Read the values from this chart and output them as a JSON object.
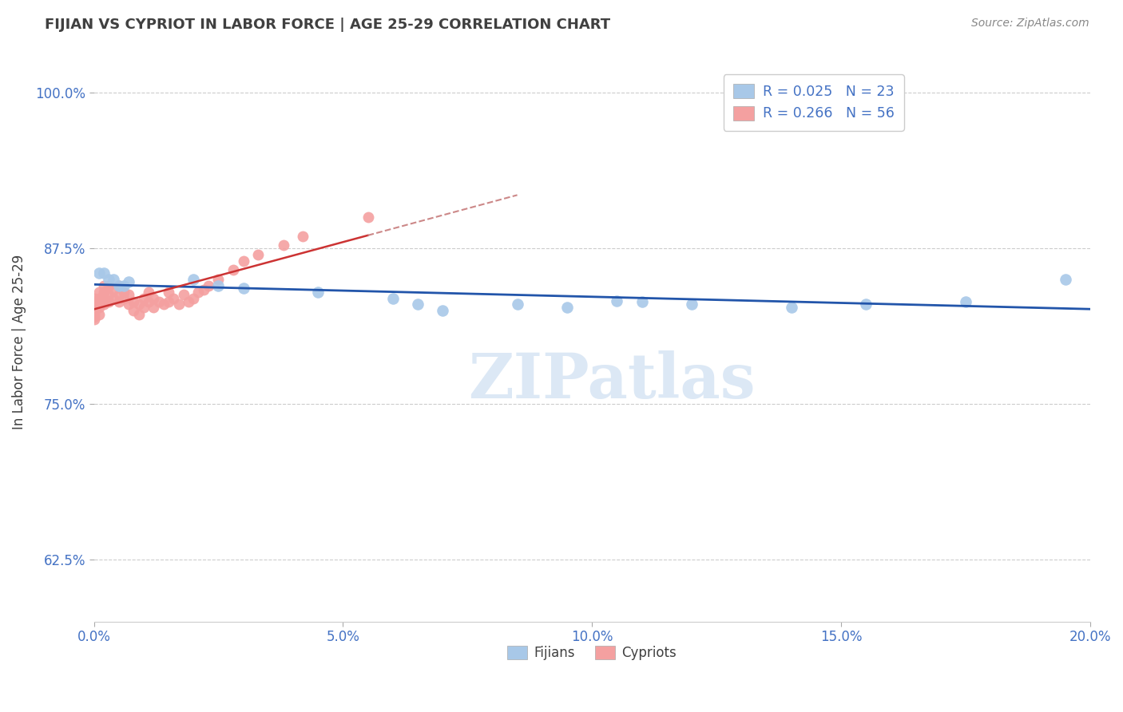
{
  "title": "FIJIAN VS CYPRIOT IN LABOR FORCE | AGE 25-29 CORRELATION CHART",
  "source_text": "Source: ZipAtlas.com",
  "ylabel": "In Labor Force | Age 25-29",
  "xlim": [
    0.0,
    0.2
  ],
  "ylim": [
    0.575,
    1.025
  ],
  "yticks": [
    0.625,
    0.75,
    0.875,
    1.0
  ],
  "ytick_labels": [
    "62.5%",
    "75.0%",
    "87.5%",
    "100.0%"
  ],
  "xticks": [
    0.0,
    0.05,
    0.1,
    0.15,
    0.2
  ],
  "xtick_labels": [
    "0.0%",
    "5.0%",
    "10.0%",
    "15.0%",
    "20.0%"
  ],
  "fijian_color": "#a8c8e8",
  "cypriot_color": "#f4a0a0",
  "fijian_R": 0.025,
  "fijian_N": 23,
  "cypriot_R": 0.266,
  "cypriot_N": 56,
  "fijian_x": [
    0.001,
    0.002,
    0.003,
    0.004,
    0.005,
    0.006,
    0.007,
    0.02,
    0.025,
    0.03,
    0.045,
    0.06,
    0.065,
    0.07,
    0.085,
    0.095,
    0.105,
    0.11,
    0.12,
    0.14,
    0.155,
    0.175,
    0.195
  ],
  "fijian_y": [
    0.855,
    0.855,
    0.85,
    0.85,
    0.845,
    0.845,
    0.848,
    0.85,
    0.845,
    0.843,
    0.84,
    0.835,
    0.83,
    0.825,
    0.83,
    0.828,
    0.833,
    0.832,
    0.83,
    0.828,
    0.83,
    0.832,
    0.85
  ],
  "cypriot_x": [
    0.0,
    0.0,
    0.0,
    0.0,
    0.0,
    0.0,
    0.001,
    0.001,
    0.001,
    0.001,
    0.001,
    0.002,
    0.002,
    0.002,
    0.002,
    0.003,
    0.003,
    0.003,
    0.004,
    0.004,
    0.005,
    0.005,
    0.005,
    0.006,
    0.006,
    0.007,
    0.007,
    0.008,
    0.008,
    0.009,
    0.009,
    0.01,
    0.01,
    0.011,
    0.011,
    0.012,
    0.012,
    0.013,
    0.014,
    0.015,
    0.015,
    0.016,
    0.017,
    0.018,
    0.019,
    0.02,
    0.021,
    0.022,
    0.023,
    0.025,
    0.028,
    0.03,
    0.033,
    0.038,
    0.042,
    0.055
  ],
  "cypriot_y": [
    0.82,
    0.83,
    0.825,
    0.822,
    0.818,
    0.835,
    0.84,
    0.835,
    0.83,
    0.828,
    0.822,
    0.845,
    0.84,
    0.835,
    0.83,
    0.845,
    0.838,
    0.832,
    0.842,
    0.835,
    0.845,
    0.838,
    0.832,
    0.84,
    0.835,
    0.838,
    0.83,
    0.832,
    0.825,
    0.83,
    0.822,
    0.835,
    0.828,
    0.84,
    0.832,
    0.835,
    0.828,
    0.832,
    0.83,
    0.84,
    0.832,
    0.835,
    0.83,
    0.838,
    0.832,
    0.835,
    0.84,
    0.842,
    0.845,
    0.85,
    0.858,
    0.865,
    0.87,
    0.878,
    0.885,
    0.9
  ],
  "background_color": "#ffffff",
  "grid_color": "#cccccc",
  "text_color_blue": "#4472c4",
  "text_color_dark": "#404040",
  "watermark_text": "ZIPatlas",
  "watermark_color": "#dce8f5",
  "fijian_line_color": "#2255aa",
  "cypriot_line_color": "#cc3333",
  "cypriot_line_dashed_color": "#cc8888"
}
